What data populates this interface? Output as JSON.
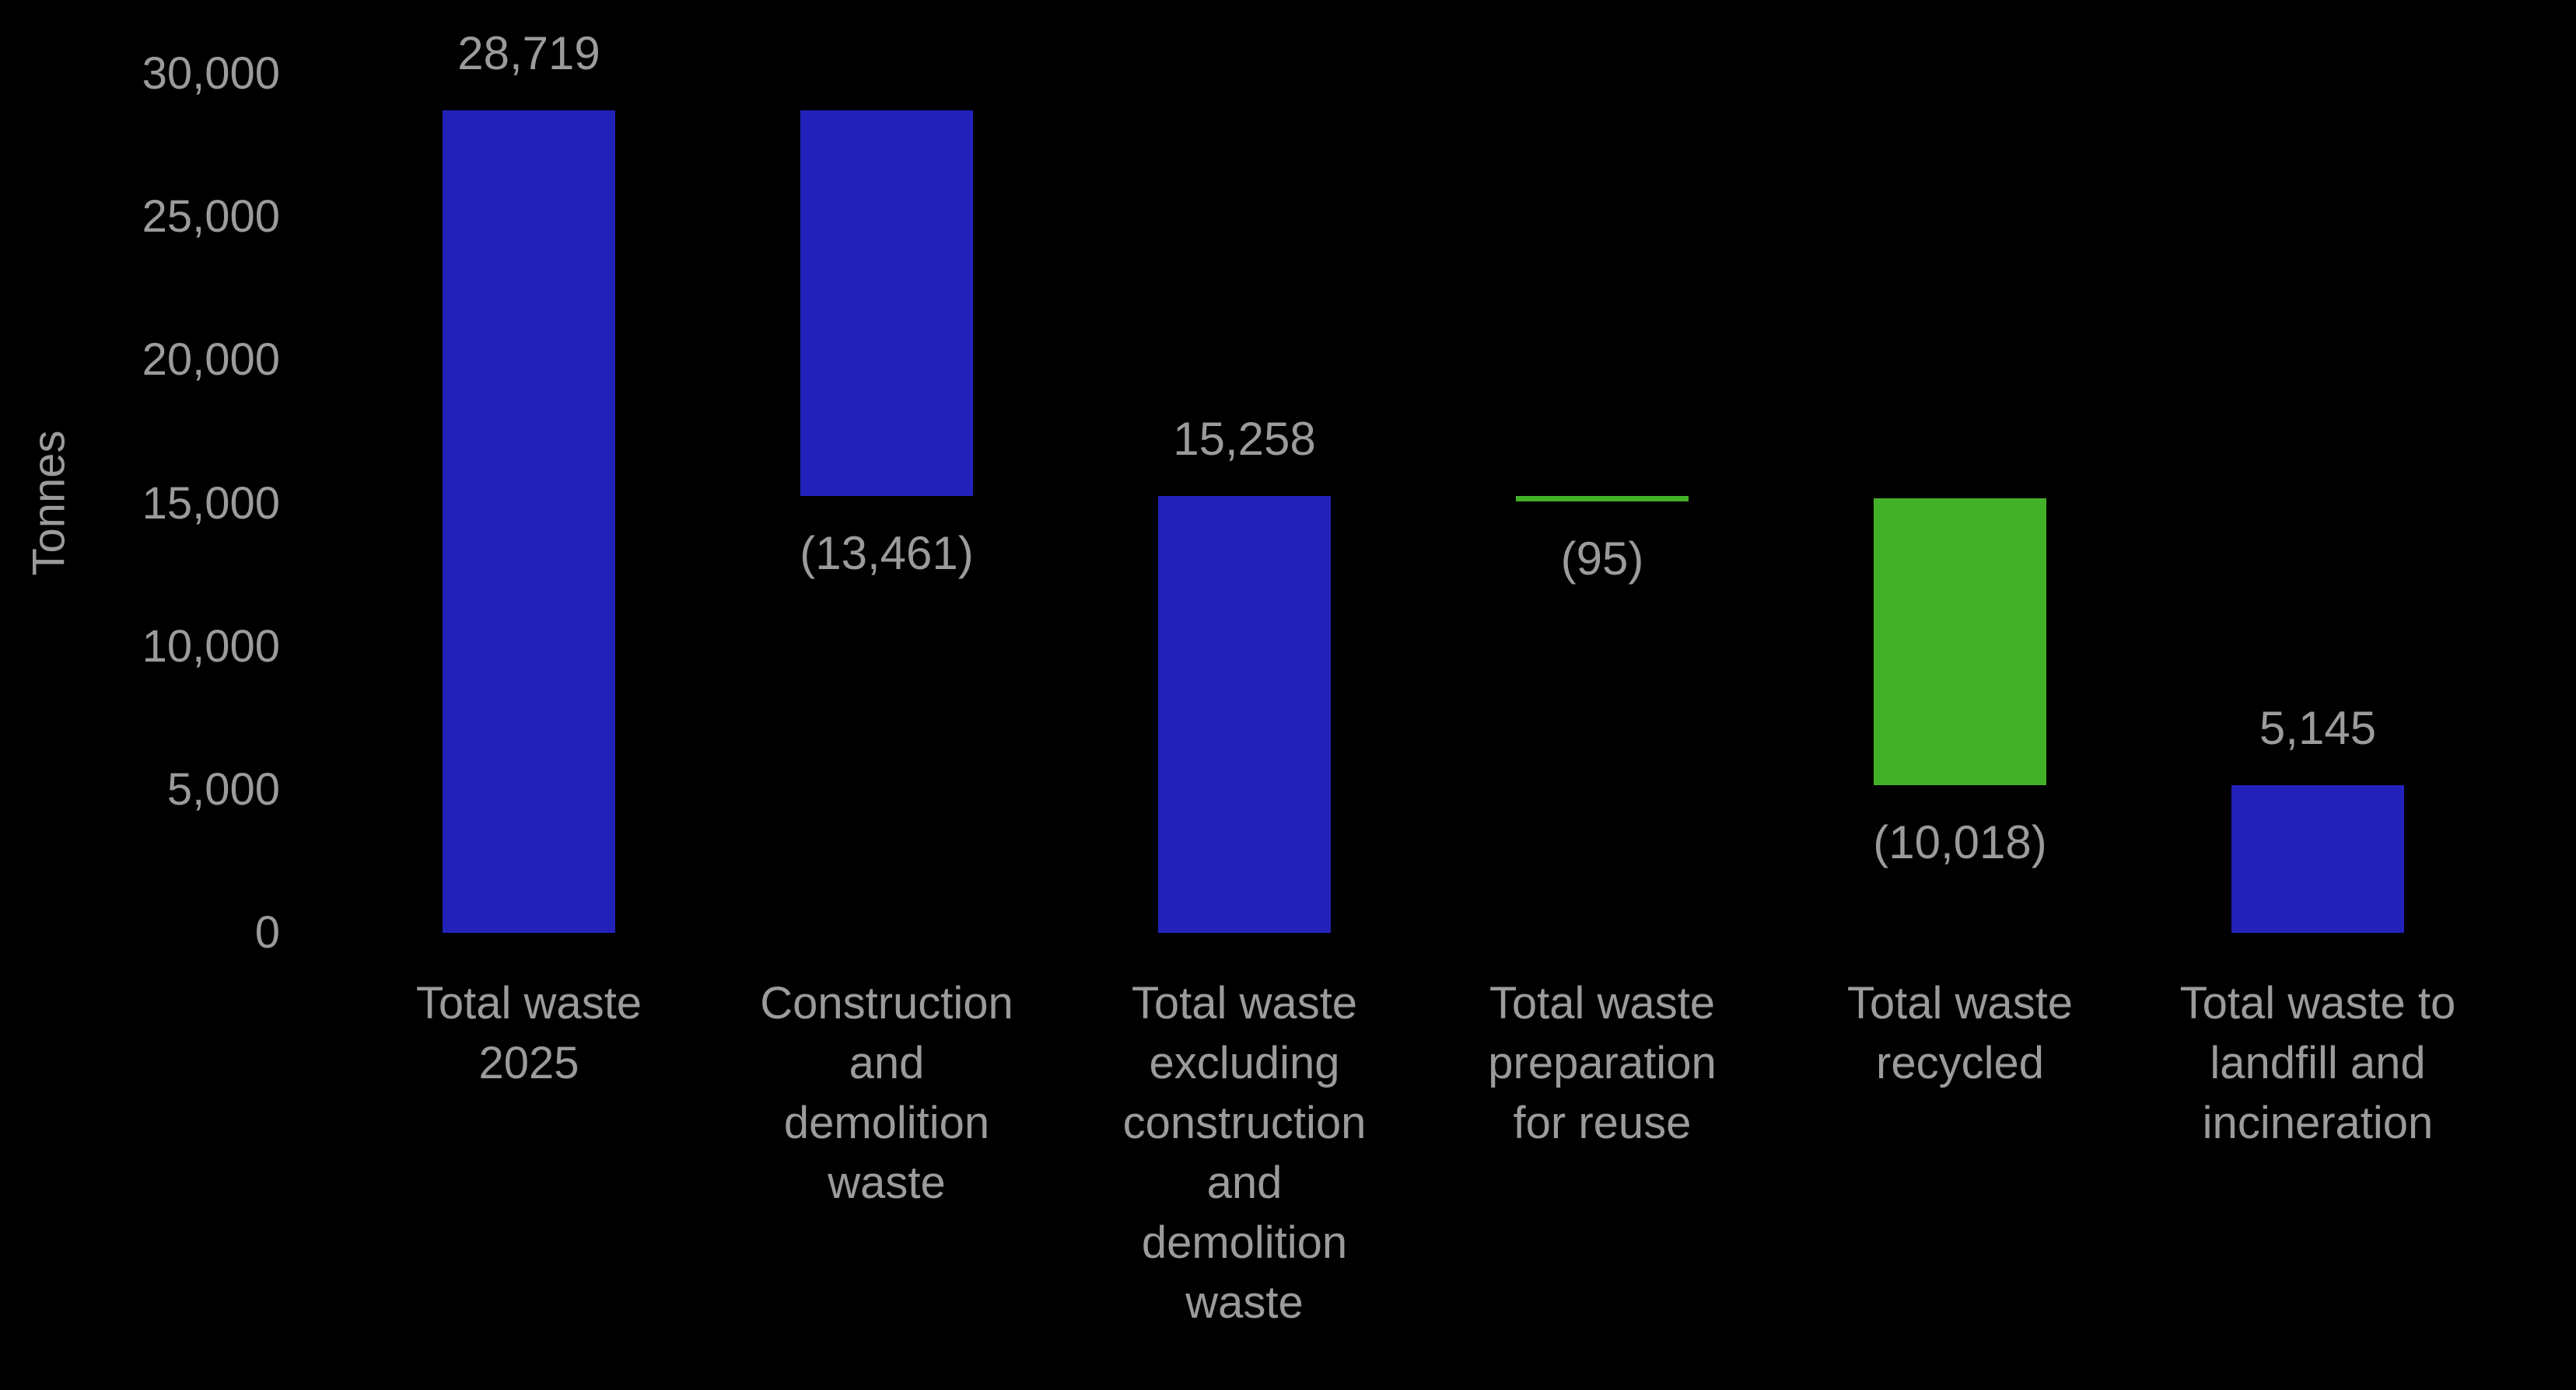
{
  "chart_data": {
    "type": "bar",
    "subtype": "waterfall",
    "title": "",
    "xlabel": "",
    "ylabel": "Tonnes",
    "ylim": [
      0,
      30000
    ],
    "grid": false,
    "legend": null,
    "yticks": [
      0,
      5000,
      10000,
      15000,
      20000,
      25000,
      30000
    ],
    "ytick_labels": [
      "0",
      "5,000",
      "10,000",
      "15,000",
      "20,000",
      "25,000",
      "30,000"
    ],
    "categories": [
      "Total waste 2025",
      "Construction and demolition waste",
      "Total waste excluding construction and demolition waste",
      "Total waste preparation for reuse",
      "Total waste recycled",
      "Total waste to landfill and incineration"
    ],
    "bars": [
      {
        "category": "Total waste 2025",
        "category_display": "Total waste\n2025",
        "start": 0,
        "end": 28719,
        "value": 28719,
        "value_label": "28,719",
        "value_label_position": "above",
        "color": "blue"
      },
      {
        "category": "Construction and demolition waste",
        "category_display": "Construction\nand\ndemolition\nwaste",
        "start": 28719,
        "end": 15258,
        "value": -13461,
        "value_label": "(13,461)",
        "value_label_position": "below",
        "color": "blue"
      },
      {
        "category": "Total waste excluding construction and demolition waste",
        "category_display": "Total waste\nexcluding\nconstruction\nand\ndemolition\nwaste",
        "start": 0,
        "end": 15258,
        "value": 15258,
        "value_label": "15,258",
        "value_label_position": "above",
        "color": "blue"
      },
      {
        "category": "Total waste preparation for reuse",
        "category_display": "Total waste\npreparation\nfor reuse",
        "start": 15258,
        "end": 15163,
        "value": -95,
        "value_label": "(95)",
        "value_label_position": "below",
        "color": "green"
      },
      {
        "category": "Total waste recycled",
        "category_display": "Total waste\nrecycled",
        "start": 15163,
        "end": 5145,
        "value": -10018,
        "value_label": "(10,018)",
        "value_label_position": "below",
        "color": "green"
      },
      {
        "category": "Total waste to landfill and incineration",
        "category_display": "Total waste to\nlandfill and\nincineration",
        "start": 0,
        "end": 5145,
        "value": 5145,
        "value_label": "5,145",
        "value_label_position": "above",
        "color": "blue"
      }
    ],
    "colors": {
      "bar_blue": "#2222bb",
      "bar_green": "#43b02a",
      "text": "#9b9b9b",
      "background": "#000000"
    }
  }
}
